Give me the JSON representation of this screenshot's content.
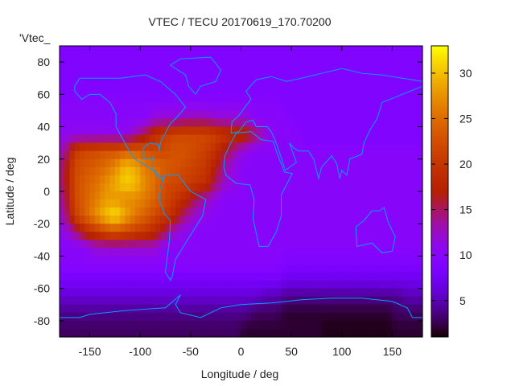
{
  "chart_data": {
    "type": "heatmap",
    "title": "VTEC / TECU 20170619_170.70200",
    "xlabel": "Longitude / deg",
    "ylabel": "Latitude / deg",
    "key_label": "'Vtec_",
    "xlim": [
      -180,
      180
    ],
    "ylim": [
      -90,
      90
    ],
    "cblim": [
      1,
      33
    ],
    "xticks": [
      -150,
      -100,
      -50,
      0,
      50,
      100,
      150
    ],
    "yticks": [
      -80,
      -60,
      -40,
      -20,
      0,
      20,
      40,
      60,
      80
    ],
    "cbticks": [
      5,
      10,
      15,
      20,
      25,
      30
    ],
    "coastline_color": "#00a0ff",
    "grid_lon_centers": [
      -175,
      -165,
      -155,
      -145,
      -135,
      -125,
      -115,
      -105,
      -95,
      -85,
      -75,
      -65,
      -55,
      -45,
      -35,
      -25,
      -15,
      -5,
      5,
      15,
      25,
      35,
      45,
      55,
      65,
      75,
      85,
      95,
      105,
      115,
      125,
      135,
      145,
      155,
      165,
      175
    ],
    "grid_lat_centers": [
      85,
      75,
      65,
      55,
      45,
      35,
      25,
      15,
      5,
      -5,
      -15,
      -25,
      -35,
      -45,
      -55,
      -65,
      -75,
      -85
    ],
    "values": [
      [
        9,
        9,
        9,
        9,
        9,
        9,
        9,
        9,
        9,
        9,
        9,
        9,
        9,
        9,
        9,
        9,
        9,
        9,
        9,
        9,
        9,
        9,
        9,
        9,
        9,
        9,
        9,
        9,
        9,
        9,
        9,
        9,
        9,
        9,
        9,
        9
      ],
      [
        9,
        9,
        9,
        9,
        9,
        9,
        9,
        9,
        9,
        9,
        9,
        9,
        9,
        9,
        9,
        9,
        9,
        9,
        9,
        9,
        9,
        9,
        9,
        9,
        9,
        9,
        9,
        9,
        9,
        9,
        9,
        9,
        9,
        9,
        9,
        9
      ],
      [
        9,
        9,
        9,
        9,
        9,
        9,
        9,
        9,
        9,
        9,
        9,
        9,
        9,
        9,
        9,
        9,
        9,
        9,
        9,
        9,
        9,
        9,
        9,
        9,
        9,
        9,
        9,
        9,
        9,
        9,
        9,
        9,
        9,
        9,
        9,
        9
      ],
      [
        10,
        10,
        10,
        10,
        10,
        10,
        10,
        10,
        10,
        10,
        10,
        10,
        10,
        10,
        10,
        10,
        10,
        10,
        10,
        10,
        10,
        10,
        9,
        9,
        9,
        9,
        9,
        9,
        9,
        9,
        9,
        9,
        9,
        9,
        9,
        9
      ],
      [
        10,
        10,
        10,
        10,
        10,
        10,
        10,
        10,
        10,
        12,
        12,
        12,
        13,
        13,
        13,
        12,
        12,
        12,
        12,
        10,
        10,
        10,
        10,
        9,
        9,
        9,
        9,
        9,
        9,
        9,
        9,
        9,
        9,
        9,
        9,
        9
      ],
      [
        11,
        11,
        11,
        11,
        11,
        11,
        11,
        13,
        16,
        19,
        21,
        22,
        22,
        22,
        22,
        21,
        20,
        19,
        18,
        15,
        12,
        10,
        10,
        10,
        9,
        9,
        9,
        9,
        9,
        9,
        9,
        9,
        9,
        9,
        9,
        9
      ],
      [
        13,
        20,
        22,
        22,
        23,
        23,
        24,
        24,
        23,
        22,
        22,
        23,
        23,
        22,
        21,
        19,
        16,
        13,
        11,
        10,
        10,
        10,
        10,
        10,
        10,
        10,
        10,
        10,
        10,
        10,
        10,
        10,
        10,
        10,
        10,
        10
      ],
      [
        15,
        22,
        23,
        24,
        25,
        27,
        30,
        29,
        26,
        25,
        24,
        23,
        22,
        21,
        20,
        17,
        13,
        11,
        10,
        10,
        10,
        10,
        10,
        10,
        10,
        10,
        10,
        10,
        10,
        10,
        10,
        10,
        10,
        10,
        10,
        10
      ],
      [
        15,
        22,
        24,
        25,
        27,
        29,
        31,
        30,
        27,
        25,
        22,
        22,
        21,
        20,
        19,
        15,
        12,
        11,
        10,
        10,
        10,
        10,
        10,
        10,
        10,
        10,
        10,
        10,
        10,
        10,
        10,
        10,
        10,
        10,
        10,
        10
      ],
      [
        14,
        22,
        24,
        26,
        28,
        28,
        27,
        27,
        26,
        24,
        22,
        20,
        18,
        15,
        13,
        11,
        10,
        10,
        10,
        10,
        10,
        10,
        10,
        10,
        10,
        10,
        10,
        10,
        10,
        10,
        10,
        10,
        10,
        10,
        10,
        10
      ],
      [
        13,
        21,
        24,
        27,
        30,
        32,
        29,
        26,
        24,
        22,
        20,
        18,
        14,
        12,
        11,
        10,
        10,
        10,
        10,
        10,
        10,
        10,
        10,
        10,
        10,
        10,
        10,
        10,
        10,
        10,
        10,
        10,
        10,
        10,
        10,
        10
      ],
      [
        11,
        14,
        18,
        20,
        22,
        23,
        22,
        21,
        20,
        18,
        15,
        12,
        11,
        10,
        10,
        10,
        10,
        10,
        10,
        10,
        10,
        10,
        10,
        10,
        10,
        10,
        10,
        10,
        10,
        10,
        10,
        10,
        10,
        10,
        10,
        10
      ],
      [
        10,
        10,
        10,
        12,
        12,
        12,
        12,
        12,
        12,
        12,
        10,
        10,
        10,
        10,
        10,
        10,
        10,
        10,
        10,
        10,
        10,
        10,
        10,
        10,
        10,
        10,
        10,
        10,
        10,
        10,
        10,
        10,
        10,
        10,
        10,
        10
      ],
      [
        10,
        10,
        10,
        10,
        10,
        10,
        10,
        10,
        10,
        10,
        10,
        10,
        10,
        10,
        10,
        10,
        10,
        10,
        10,
        10,
        10,
        10,
        9,
        9,
        9,
        9,
        9,
        9,
        9,
        9,
        9,
        9,
        9,
        9,
        9,
        9
      ],
      [
        8,
        8,
        8,
        8,
        8,
        8,
        8,
        8,
        8,
        8,
        8,
        8,
        8,
        8,
        8,
        8,
        8,
        8,
        8,
        8,
        8,
        8,
        7,
        7,
        7,
        7,
        7,
        7,
        7,
        7,
        7,
        7,
        7,
        7,
        7,
        7
      ],
      [
        6,
        6,
        6,
        6,
        6,
        6,
        6,
        6,
        6,
        6,
        6,
        6,
        6,
        6,
        6,
        6,
        6,
        6,
        6,
        6,
        5,
        5,
        4,
        4,
        4,
        4,
        4,
        4,
        4,
        4,
        4,
        4,
        4,
        4,
        5,
        5
      ],
      [
        4,
        4,
        4,
        4,
        4,
        4,
        4,
        4,
        4,
        4,
        4,
        4,
        4,
        4,
        4,
        4,
        4,
        4,
        4,
        3,
        3,
        3,
        2,
        2,
        2,
        2,
        2,
        2,
        2,
        2,
        2,
        2,
        2,
        3,
        3,
        3
      ],
      [
        3,
        3,
        3,
        3,
        3,
        3,
        3,
        3,
        3,
        3,
        3,
        3,
        3,
        3,
        3,
        3,
        3,
        3,
        2,
        2,
        2,
        2,
        2,
        2,
        2,
        2,
        1.5,
        1.5,
        1.5,
        1.5,
        1.5,
        1.5,
        1.5,
        2,
        2,
        2
      ]
    ]
  }
}
